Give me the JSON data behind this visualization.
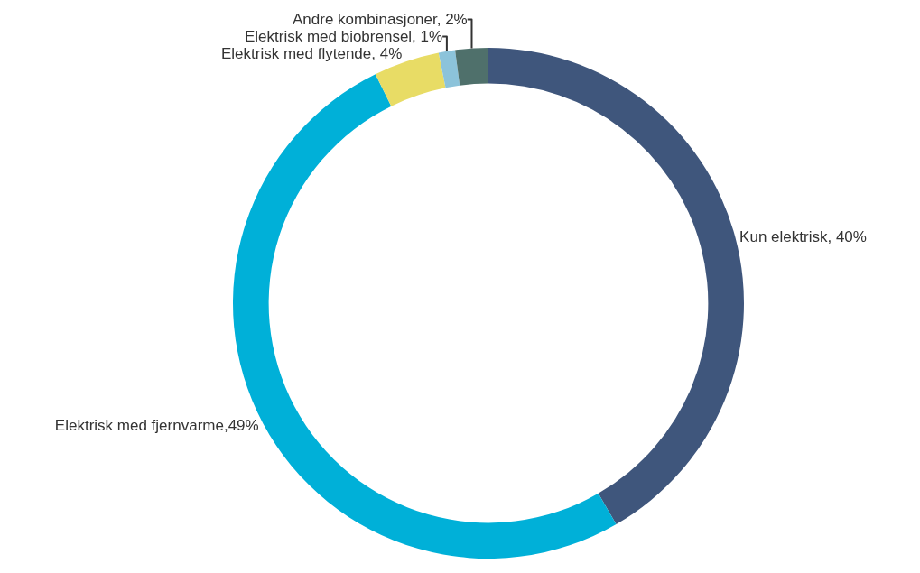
{
  "chart_data": {
    "type": "donut",
    "categories": [
      "Kun elektrisk",
      "Elektrisk med fjernvarme",
      "Elektrisk med flytende",
      "Elektrisk med biobrensel",
      "Andre kombinasjoner"
    ],
    "values": [
      40,
      49,
      4,
      1,
      2
    ],
    "value_labels": [
      ", 40%",
      ",49%",
      ", 4%",
      ", 1%",
      ", 2%"
    ],
    "colors": [
      "#3f567c",
      "#00b0d8",
      "#e8dc65",
      "#8cc3da",
      "#4f706b"
    ],
    "legend": false
  }
}
